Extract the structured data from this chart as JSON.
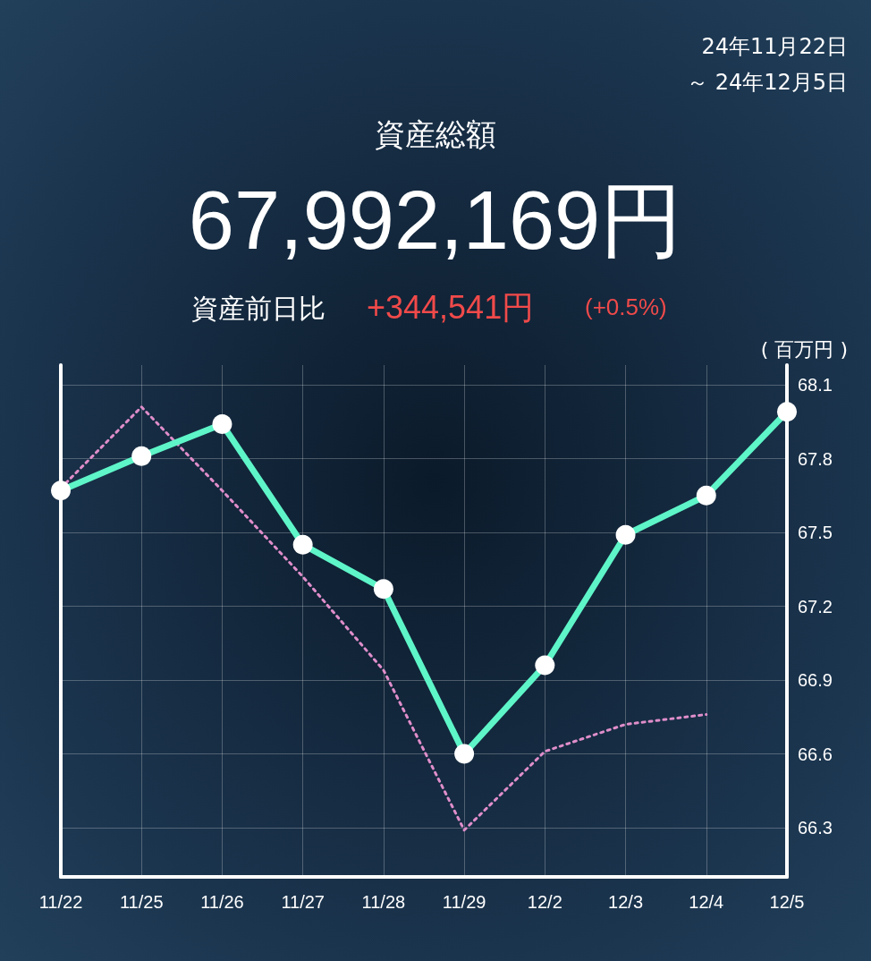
{
  "chart_data": {
    "type": "line",
    "title": "資産総額",
    "ylabel": "( 百万円 )",
    "annotations": [
      "24年11月22日",
      "～ 24年12月5日",
      "67,992,169円",
      "資産前日比",
      "+344,541円",
      "(+0.5%)"
    ],
    "categories": [
      "11/22",
      "11/25",
      "11/26",
      "11/27",
      "11/28",
      "11/29",
      "12/2",
      "12/3",
      "12/4",
      "12/5"
    ],
    "series": [
      {
        "color": "#5ef5c8",
        "marker": "circle",
        "line_style": "solid",
        "values": [
          67.67,
          67.81,
          67.94,
          67.45,
          67.27,
          66.6,
          66.96,
          67.49,
          67.65,
          67.99
        ]
      },
      {
        "color": "#e08ecb",
        "marker": "none",
        "line_style": "dotted",
        "values": [
          67.68,
          68.01,
          67.67,
          67.32,
          66.94,
          66.29,
          66.61,
          66.72,
          66.76,
          null
        ]
      }
    ],
    "ylim": [
      66.1,
      68.18
    ],
    "yticks": [
      66.3,
      66.6,
      66.9,
      67.2,
      67.5,
      67.8,
      68.1
    ],
    "grid": true
  }
}
